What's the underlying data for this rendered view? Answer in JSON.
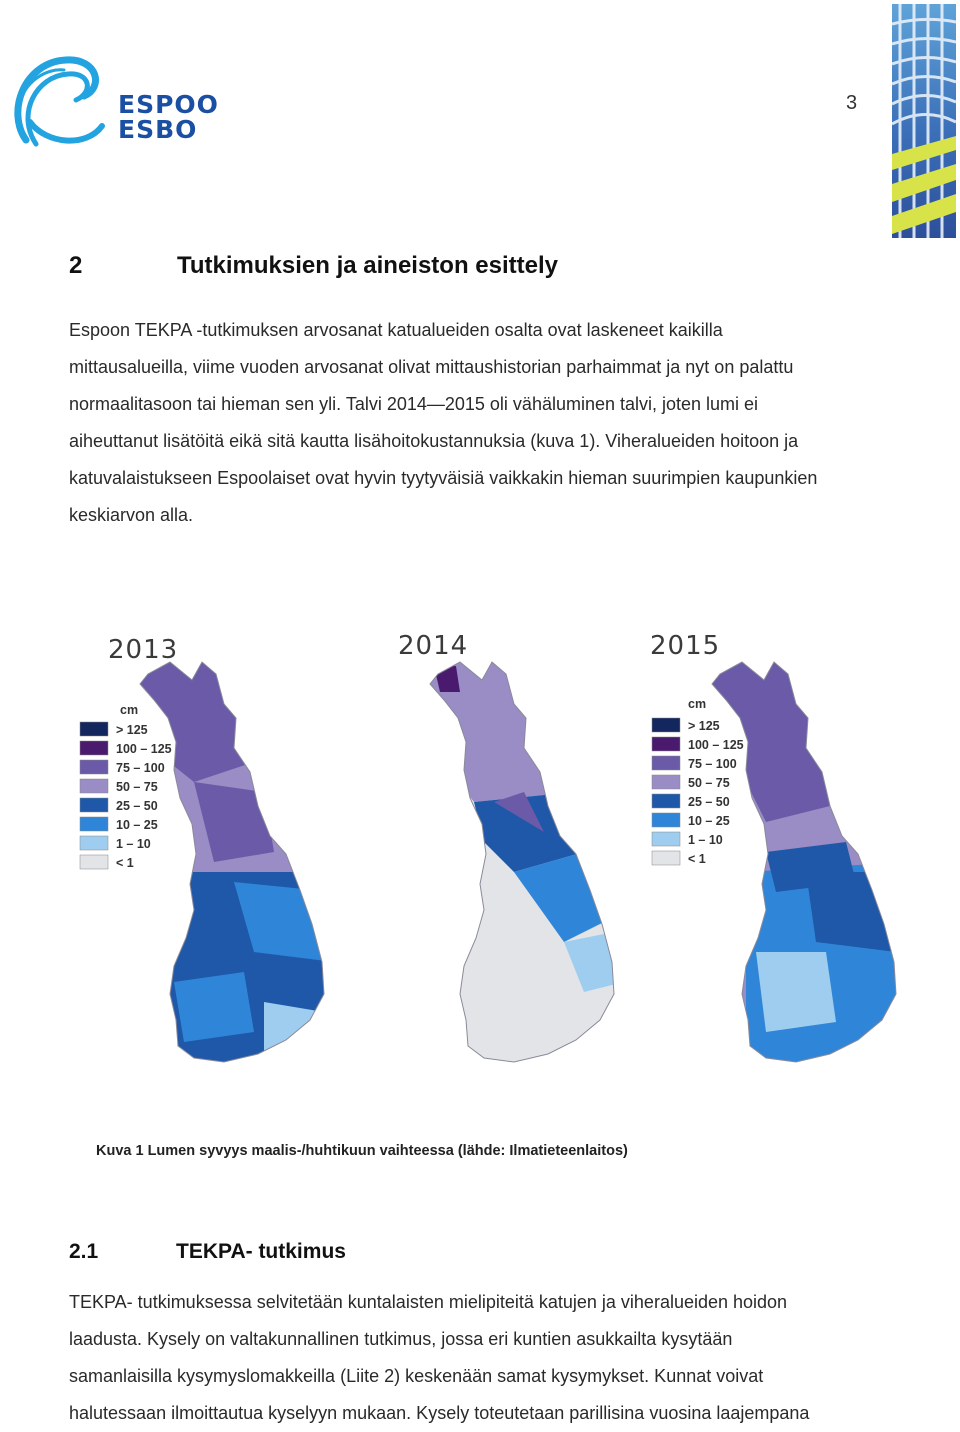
{
  "header": {
    "logo_line1": "ESPOO",
    "logo_line2": "ESBO",
    "page_number": "3"
  },
  "section": {
    "number": "2",
    "title": "Tutkimuksien ja aineiston esittely",
    "paragraph_lines": [
      "Espoon TEKPA -tutkimuksen arvosanat katualueiden osalta ovat laskeneet kaikilla",
      "mittausalueilla, viime vuoden arvosanat olivat mittaushistorian parhaimmat ja nyt on palattu",
      "normaalitasoon tai hieman sen yli. Talvi 2014—2015 oli vähäluminen talvi, joten lumi ei",
      "aiheuttanut lisätöitä eikä sitä kautta lisähoitokustannuksia (kuva 1). Viheralueiden hoitoon ja",
      "katuvalaistukseen Espoolaiset ovat hyvin tyytyväisiä vaikkakin hieman suurimpien kaupunkien",
      "keskiarvon alla."
    ]
  },
  "figure": {
    "maps": [
      {
        "year": "2013"
      },
      {
        "year": "2014"
      },
      {
        "year": "2015"
      }
    ],
    "legend": {
      "unit": "cm",
      "entries": [
        {
          "label": "> 125",
          "color": "#13265e"
        },
        {
          "label": "100 – 125",
          "color": "#4a1a6e"
        },
        {
          "label": "75 – 100",
          "color": "#6a5aa8"
        },
        {
          "label": "50 – 75",
          "color": "#9a8cc4"
        },
        {
          "label": "25 – 50",
          "color": "#1f58a8"
        },
        {
          "label": "10 – 25",
          "color": "#2f86d8"
        },
        {
          "label": "1 – 10",
          "color": "#9fcdf0"
        },
        {
          "label": "< 1",
          "color": "#e2e4e8"
        }
      ]
    },
    "caption": "Kuva 1 Lumen syvyys maalis-/huhtikuun vaihteessa (lähde: Ilmatieteenlaitos)"
  },
  "subsection": {
    "number": "2.1",
    "title": "TEKPA- tutkimus",
    "paragraph_lines": [
      "TEKPA- tutkimuksessa selvitetään kuntalaisten mielipiteitä katujen ja viheralueiden hoidon",
      "laadusta. Kysely on valtakunnallinen tutkimus, jossa eri kuntien asukkailta kysytään",
      "samanlaisilla kysymyslomakkeilla (Liite 2) keskenään samat kysymykset. Kunnat voivat",
      "halutessaan ilmoittautua kyselyyn mukaan. Kysely toteutetaan parillisina vuosina laajempana"
    ]
  }
}
